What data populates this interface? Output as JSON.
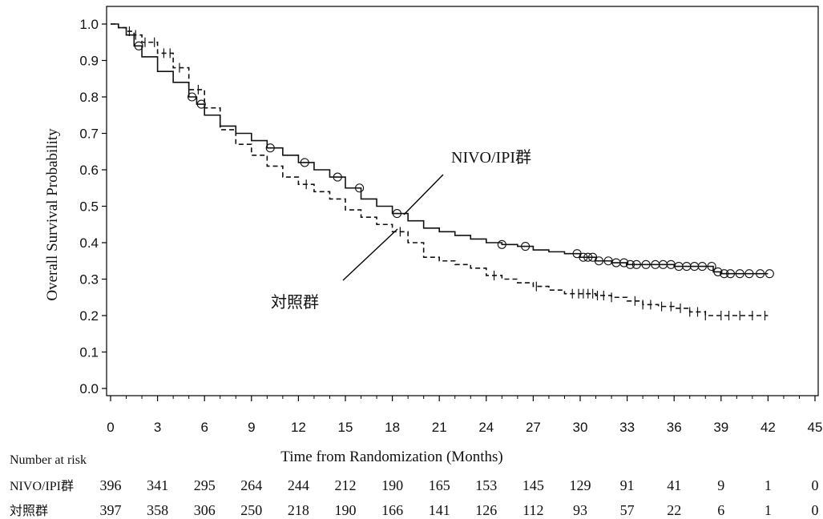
{
  "chart_data": {
    "type": "line",
    "xlabel": "Time from Randomization (Months)",
    "ylabel": "Overall Survival Probability",
    "xlim": [
      0,
      45
    ],
    "ylim": [
      0.0,
      1.0
    ],
    "x_ticks": [
      0,
      3,
      6,
      9,
      12,
      15,
      18,
      21,
      24,
      27,
      30,
      33,
      36,
      39,
      42,
      45
    ],
    "y_ticks": [
      "0.0",
      "0.1",
      "0.2",
      "0.3",
      "0.4",
      "0.5",
      "0.6",
      "0.7",
      "0.8",
      "0.9",
      "1.0"
    ],
    "grid": false,
    "series": [
      {
        "name": "NIVO/IPI群",
        "line_style": "solid",
        "censor_marker": "circle",
        "color": "#111111",
        "x": [
          0,
          0.5,
          1,
          1.5,
          2,
          3,
          4,
          5,
          5.5,
          6,
          7,
          8,
          9,
          10,
          11,
          12,
          13,
          14,
          15,
          16,
          17,
          18,
          19,
          20,
          21,
          22,
          23,
          24,
          25,
          26,
          27,
          28,
          29,
          30,
          31,
          32,
          33,
          34,
          35,
          36,
          37,
          38,
          38.5,
          39,
          40,
          41,
          42
        ],
        "y": [
          1.0,
          0.99,
          0.97,
          0.94,
          0.91,
          0.87,
          0.84,
          0.8,
          0.78,
          0.75,
          0.72,
          0.7,
          0.68,
          0.66,
          0.64,
          0.62,
          0.6,
          0.58,
          0.55,
          0.52,
          0.5,
          0.48,
          0.46,
          0.44,
          0.43,
          0.42,
          0.41,
          0.4,
          0.395,
          0.39,
          0.38,
          0.375,
          0.37,
          0.36,
          0.35,
          0.345,
          0.34,
          0.34,
          0.34,
          0.335,
          0.335,
          0.335,
          0.32,
          0.315,
          0.315,
          0.315,
          0.315
        ],
        "censor_x": [
          1.8,
          5.2,
          5.8,
          10.2,
          12.4,
          14.5,
          15.9,
          18.3,
          25,
          26.5,
          29.8,
          30.2,
          30.5,
          30.8,
          31.2,
          31.8,
          32.3,
          32.8,
          33.2,
          33.6,
          34.2,
          34.8,
          35.3,
          35.8,
          36.3,
          36.8,
          37.3,
          37.8,
          38.4,
          38.8,
          39.2,
          39.6,
          40.2,
          40.8,
          41.5,
          42.1
        ]
      },
      {
        "name": "対照群",
        "line_style": "dashed",
        "censor_marker": "plus",
        "color": "#111111",
        "x": [
          0,
          0.5,
          1,
          1.5,
          2,
          3,
          4,
          5,
          6,
          7,
          8,
          9,
          10,
          11,
          12,
          13,
          14,
          15,
          16,
          17,
          18,
          19,
          20,
          21,
          22,
          23,
          24,
          25,
          26,
          27,
          28,
          29,
          30,
          31,
          32,
          33,
          34,
          35,
          36,
          37,
          38,
          39,
          40,
          41,
          42
        ],
        "y": [
          1.0,
          0.99,
          0.98,
          0.97,
          0.95,
          0.92,
          0.88,
          0.82,
          0.77,
          0.71,
          0.67,
          0.64,
          0.61,
          0.58,
          0.56,
          0.54,
          0.52,
          0.49,
          0.47,
          0.45,
          0.43,
          0.4,
          0.36,
          0.35,
          0.34,
          0.33,
          0.31,
          0.3,
          0.29,
          0.28,
          0.27,
          0.26,
          0.26,
          0.255,
          0.25,
          0.24,
          0.23,
          0.225,
          0.22,
          0.21,
          0.2,
          0.2,
          0.2,
          0.2,
          0.2
        ],
        "censor_x": [
          1.2,
          1.6,
          2.2,
          2.8,
          3.4,
          3.8,
          4.4,
          5.6,
          12.5,
          18.5,
          24.5,
          27.2,
          29.5,
          29.9,
          30.2,
          30.5,
          30.8,
          31.1,
          31.5,
          32.0,
          33.5,
          34.0,
          34.5,
          35.2,
          35.8,
          36.4,
          37.0,
          37.5,
          38.0,
          39.0,
          39.5,
          40.2,
          41.0,
          41.8
        ]
      }
    ],
    "annotations": [
      {
        "text": "NIVO/IPI群"
      },
      {
        "text": "対照群"
      }
    ]
  },
  "risk_table": {
    "title": "Number at risk",
    "rows": [
      {
        "label": "NIVO/IPI群",
        "values": [
          "396",
          "341",
          "295",
          "264",
          "244",
          "212",
          "190",
          "165",
          "153",
          "145",
          "129",
          "91",
          "41",
          "9",
          "1",
          "0"
        ]
      },
      {
        "label": "対照群",
        "values": [
          "397",
          "358",
          "306",
          "250",
          "218",
          "190",
          "166",
          "141",
          "126",
          "112",
          "93",
          "57",
          "22",
          "6",
          "1",
          "0"
        ]
      }
    ]
  }
}
